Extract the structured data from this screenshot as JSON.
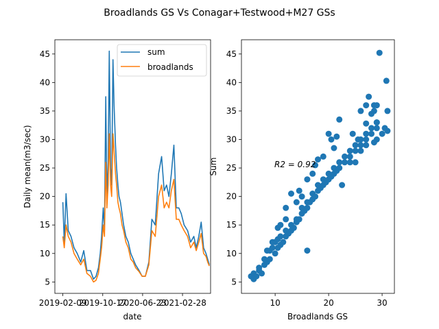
{
  "figure": {
    "suptitle": "Broadlands GS Vs Conagar+Testwood+M27 GSs"
  },
  "colors": {
    "sum": "#1f77b4",
    "broadlands": "#ff7f0e",
    "scatter": "#1f77b4"
  },
  "chart_data": [
    {
      "type": "line",
      "xlabel": "date",
      "ylabel": "Daily mean(m3/sec)",
      "x_ticks": [
        "2019-02-09",
        "2019-10-17",
        "2020-06-23",
        "2021-02-28"
      ],
      "y_ticks": [
        5,
        10,
        15,
        20,
        25,
        30,
        35,
        40,
        45
      ],
      "xlim": [
        "2018-12-21",
        "2021-08-23"
      ],
      "ylim": [
        3,
        47.5
      ],
      "legend": "top-right",
      "series": [
        {
          "name": "sum",
          "x": [
            "2019-02-09",
            "2019-02-18",
            "2019-03-01",
            "2019-03-15",
            "2019-04-01",
            "2019-04-20",
            "2019-05-10",
            "2019-06-01",
            "2019-06-20",
            "2019-07-10",
            "2019-08-01",
            "2019-08-20",
            "2019-09-05",
            "2019-09-20",
            "2019-10-01",
            "2019-10-10",
            "2019-10-20",
            "2019-10-28",
            "2019-11-05",
            "2019-11-12",
            "2019-11-20",
            "2019-11-27",
            "2019-12-05",
            "2019-12-12",
            "2019-12-20",
            "2019-12-27",
            "2020-01-05",
            "2020-01-12",
            "2020-01-20",
            "2020-01-27",
            "2020-02-05",
            "2020-02-15",
            "2020-02-25",
            "2020-03-10",
            "2020-03-25",
            "2020-04-10",
            "2020-04-25",
            "2020-05-10",
            "2020-06-01",
            "2020-06-20",
            "2020-07-10",
            "2020-08-01",
            "2020-08-20",
            "2020-09-10",
            "2020-10-01",
            "2020-10-20",
            "2020-11-05",
            "2020-11-20",
            "2020-12-05",
            "2020-12-20",
            "2021-01-05",
            "2021-01-20",
            "2021-02-05",
            "2021-02-20",
            "2021-03-10",
            "2021-04-01",
            "2021-04-20",
            "2021-05-10",
            "2021-05-25",
            "2021-06-10",
            "2021-06-25",
            "2021-07-10",
            "2021-07-25",
            "2021-08-05",
            "2021-08-15"
          ],
          "values": [
            19,
            12,
            20.5,
            14,
            13,
            11,
            10,
            8.5,
            10.5,
            7,
            7,
            5.5,
            6,
            7.5,
            10,
            13,
            18,
            14,
            37.5,
            20,
            26,
            45.5,
            25,
            22,
            44,
            36,
            29,
            25,
            22,
            20,
            19,
            17,
            15,
            13,
            12,
            10,
            9,
            8,
            7,
            6,
            6,
            8.5,
            16,
            15,
            24,
            27,
            21,
            22,
            20,
            24,
            29,
            18,
            18,
            17,
            15,
            14,
            12,
            13,
            11,
            13,
            15.5,
            11,
            10,
            9,
            8
          ]
        },
        {
          "name": "broadlands",
          "x": [
            "2019-02-09",
            "2019-02-18",
            "2019-03-01",
            "2019-03-15",
            "2019-04-01",
            "2019-04-20",
            "2019-05-10",
            "2019-06-01",
            "2019-06-20",
            "2019-07-10",
            "2019-08-01",
            "2019-08-20",
            "2019-09-05",
            "2019-09-20",
            "2019-10-01",
            "2019-10-10",
            "2019-10-20",
            "2019-10-28",
            "2019-11-05",
            "2019-11-12",
            "2019-11-20",
            "2019-11-27",
            "2019-12-05",
            "2019-12-12",
            "2019-12-20",
            "2019-12-27",
            "2020-01-05",
            "2020-01-12",
            "2020-01-20",
            "2020-01-27",
            "2020-02-05",
            "2020-02-15",
            "2020-02-25",
            "2020-03-10",
            "2020-03-25",
            "2020-04-10",
            "2020-04-25",
            "2020-05-10",
            "2020-06-01",
            "2020-06-20",
            "2020-07-10",
            "2020-08-01",
            "2020-08-20",
            "2020-09-10",
            "2020-10-01",
            "2020-10-20",
            "2020-11-05",
            "2020-11-20",
            "2020-12-05",
            "2020-12-20",
            "2021-01-05",
            "2021-01-20",
            "2021-02-05",
            "2021-02-20",
            "2021-03-10",
            "2021-04-01",
            "2021-04-20",
            "2021-05-10",
            "2021-05-25",
            "2021-06-10",
            "2021-06-25",
            "2021-07-10",
            "2021-07-25",
            "2021-08-05",
            "2021-08-15"
          ],
          "values": [
            13,
            11,
            15,
            13,
            12,
            10,
            9,
            8,
            9,
            6.5,
            6,
            5,
            5.3,
            6.5,
            9,
            11,
            15,
            13,
            26,
            18,
            22,
            31,
            22,
            20,
            31,
            28,
            24,
            22,
            19,
            18,
            17,
            15,
            14,
            12,
            11,
            9,
            8.5,
            7.5,
            6.8,
            6,
            6,
            8,
            14,
            13,
            20,
            22,
            18,
            19,
            18,
            21,
            23,
            16,
            16,
            15,
            14,
            13,
            11,
            12,
            10.5,
            12,
            13.5,
            10,
            9.5,
            8.5,
            7.8
          ]
        }
      ]
    },
    {
      "type": "scatter",
      "xlabel": "Broadlands GS",
      "ylabel": "Sum",
      "annotation": "R2 = 0.92",
      "x_ticks": [
        10,
        20,
        30
      ],
      "y_ticks": [
        5,
        10,
        15,
        20,
        25,
        30,
        35,
        40,
        45
      ],
      "xlim": [
        3.7,
        32.3
      ],
      "ylim": [
        3,
        47.5
      ],
      "points": [
        [
          5.5,
          6
        ],
        [
          6,
          6.5
        ],
        [
          6.5,
          6
        ],
        [
          6,
          5.5
        ],
        [
          7,
          7
        ],
        [
          7.5,
          6.5
        ],
        [
          8,
          8
        ],
        [
          8.5,
          8.5
        ],
        [
          9,
          9
        ],
        [
          9,
          10.5
        ],
        [
          9.5,
          11
        ],
        [
          10,
          10
        ],
        [
          10,
          12
        ],
        [
          10.5,
          11
        ],
        [
          10.5,
          12.5
        ],
        [
          11,
          11.5
        ],
        [
          11,
          13
        ],
        [
          11.5,
          12
        ],
        [
          12,
          13
        ],
        [
          12,
          14
        ],
        [
          12.5,
          13.5
        ],
        [
          13,
          14
        ],
        [
          13,
          15
        ],
        [
          13.5,
          14.5
        ],
        [
          14,
          15.5
        ],
        [
          14,
          16
        ],
        [
          14.5,
          16
        ],
        [
          15,
          17
        ],
        [
          15,
          18
        ],
        [
          15.5,
          17.5
        ],
        [
          16,
          18
        ],
        [
          16,
          19
        ],
        [
          16.5,
          19
        ],
        [
          17,
          19.5
        ],
        [
          17,
          20.5
        ],
        [
          17.5,
          20
        ],
        [
          18,
          21
        ],
        [
          18,
          22
        ],
        [
          18.5,
          21.5
        ],
        [
          19,
          22
        ],
        [
          19,
          23
        ],
        [
          19.5,
          22.5
        ],
        [
          20,
          23
        ],
        [
          20,
          24
        ],
        [
          20.5,
          23.5
        ],
        [
          21,
          24
        ],
        [
          21,
          25
        ],
        [
          21.5,
          24.5
        ],
        [
          22,
          25
        ],
        [
          22,
          26
        ],
        [
          23,
          26
        ],
        [
          23,
          27
        ],
        [
          24,
          27
        ],
        [
          24,
          28
        ],
        [
          25,
          28
        ],
        [
          25,
          29
        ],
        [
          26,
          29
        ],
        [
          26,
          30
        ],
        [
          27,
          30
        ],
        [
          27,
          31
        ],
        [
          28,
          31
        ],
        [
          28,
          32
        ],
        [
          29,
          32
        ],
        [
          29,
          33
        ],
        [
          7,
          7.5
        ],
        [
          8,
          9
        ],
        [
          8.5,
          10.5
        ],
        [
          9.5,
          12
        ],
        [
          10.5,
          14.5
        ],
        [
          11,
          15
        ],
        [
          12,
          16
        ],
        [
          12,
          18
        ],
        [
          13,
          20.5
        ],
        [
          14,
          19
        ],
        [
          14.5,
          21
        ],
        [
          15,
          20
        ],
        [
          16,
          23
        ],
        [
          16,
          10.5
        ],
        [
          17,
          24
        ],
        [
          17.5,
          25.5
        ],
        [
          18,
          26.5
        ],
        [
          19,
          27
        ],
        [
          20,
          31
        ],
        [
          20.5,
          30
        ],
        [
          21,
          28.5
        ],
        [
          21.5,
          30.5
        ],
        [
          22,
          33.5
        ],
        [
          22.5,
          22
        ],
        [
          24,
          26
        ],
        [
          25,
          26
        ],
        [
          26,
          28
        ],
        [
          26,
          35
        ],
        [
          27,
          36
        ],
        [
          27,
          29
        ],
        [
          27.5,
          37.5
        ],
        [
          28,
          34.5
        ],
        [
          28.5,
          35
        ],
        [
          28.5,
          36
        ],
        [
          29,
          36
        ],
        [
          29,
          30
        ],
        [
          29,
          33
        ],
        [
          29.5,
          45.2
        ],
        [
          30,
          31
        ],
        [
          30.5,
          32
        ],
        [
          30.8,
          40.3
        ],
        [
          31,
          35
        ],
        [
          31,
          31.5
        ],
        [
          27,
          32.8
        ],
        [
          28.5,
          29.5
        ],
        [
          25.5,
          30
        ],
        [
          24.5,
          31
        ]
      ]
    }
  ]
}
